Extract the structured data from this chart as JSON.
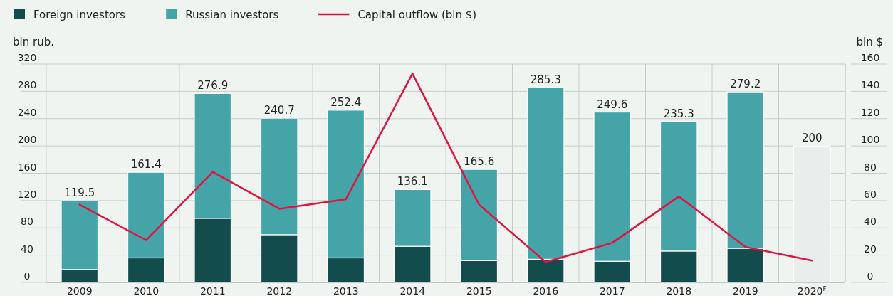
{
  "chart_data": {
    "type": "bar",
    "stacked": true,
    "categories": [
      "2009",
      "2010",
      "2011",
      "2012",
      "2013",
      "2014",
      "2015",
      "2016",
      "2017",
      "2018",
      "2019",
      "2020$^{F}$"
    ],
    "series": [
      {
        "name": "Foreign investors",
        "color": "#124c4d",
        "values": [
          19,
          36,
          94,
          70,
          36,
          53,
          32,
          34,
          31,
          46,
          50,
          null
        ]
      },
      {
        "name": "Russian investors",
        "color": "#44a4a7",
        "values": [
          100.5,
          125.4,
          182.9,
          170.7,
          216.4,
          83.1,
          133.6,
          251.3,
          218.6,
          189.3,
          229.2,
          null
        ]
      },
      {
        "color": "#e8eeec",
        "values": [
          null,
          null,
          null,
          null,
          null,
          null,
          null,
          null,
          null,
          null,
          null,
          200
        ]
      },
      {
        "name": "Capital outflow (bln $)",
        "type": "line",
        "axis": "y2",
        "color": "#e4123f",
        "values": [
          57,
          31,
          81,
          54,
          61,
          153,
          57,
          15,
          29,
          63,
          26,
          16
        ]
      }
    ],
    "totals": [
      "119.5",
      "161.4",
      "276.9",
      "240.7",
      "252.4",
      "136.1",
      "165.6",
      "285.3",
      "249.6",
      "235.3",
      "279.2",
      "200"
    ],
    "ylabel": "bln rub.",
    "y2label": "bln $",
    "ylim": [
      0,
      320
    ],
    "yticks": [
      0,
      40,
      80,
      120,
      160,
      200,
      240,
      280,
      320
    ],
    "y2lim": [
      0,
      160
    ],
    "y2ticks": [
      0,
      20,
      40,
      60,
      80,
      100,
      120,
      140,
      160
    ],
    "grid": true,
    "legend": "top left"
  }
}
